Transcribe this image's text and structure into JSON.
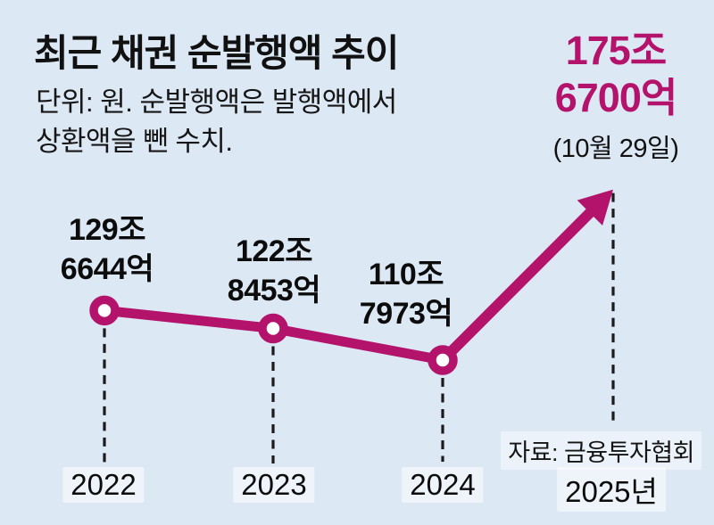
{
  "header": {
    "title": "최근 채권 순발행액 추이",
    "subtitle_line1": "단위: 원. 순발행액은 발행액에서",
    "subtitle_line2": "상환액을 뺀 수치."
  },
  "highlight": {
    "value_line1": "175조",
    "value_line2": "6700억",
    "date_note": "(10월 29일)"
  },
  "source_credit": "자료: 금융투자협회",
  "colors": {
    "background": "#dde8f5",
    "accent": "#b4136b",
    "text": "#111111",
    "dash": "#1b1b1b",
    "marker_fill": "#ffffff"
  },
  "chart_data": {
    "type": "line",
    "title": "최근 채권 순발행액 추이",
    "unit_note": "단위: 원. 순발행액은 발행액에서 상환액을 뺀 수치.",
    "categories": [
      "2022",
      "2023",
      "2024",
      "2025년"
    ],
    "values": [
      129.6644,
      122.8453,
      110.7973,
      175.67
    ],
    "point_labels": [
      {
        "line1": "129조",
        "line2": "6644억"
      },
      {
        "line1": "122조",
        "line2": "8453억"
      },
      {
        "line1": "110조",
        "line2": "7973억"
      },
      {
        "line1": "175조",
        "line2": "6700억",
        "note": "(10월 29일)"
      }
    ],
    "last_point_style": "arrow",
    "legend": false,
    "grid": false,
    "ylim": [
      100,
      190
    ],
    "source": "자료: 금융투자협회"
  }
}
